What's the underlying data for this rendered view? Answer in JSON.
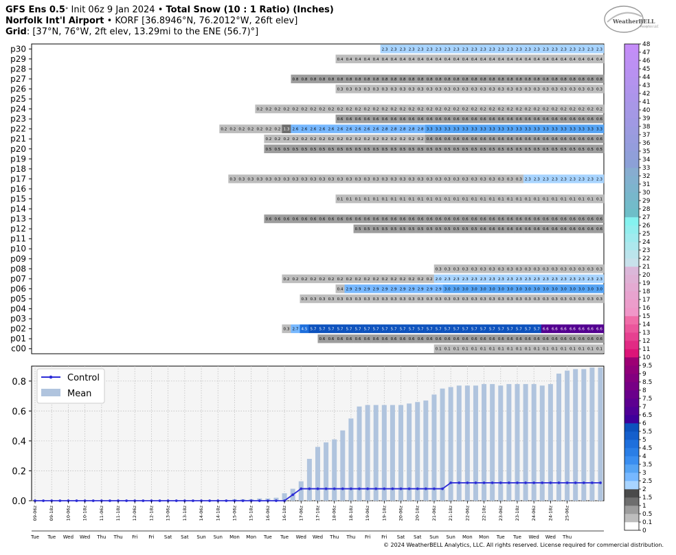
{
  "header": {
    "line1_a": "GFS Ens 0.5",
    "line1_deg": "°",
    "line1_b": " Init 06z 9 Jan 2024 • ",
    "line1_c": "Total Snow (10 : 1 Ratio) (Inches)",
    "line2_a": "Norfolk Int'l Airport",
    "line2_b": " • KORF [36.8946°N, 76.2012°W, 26ft elev]",
    "line3_a": "Grid",
    "line3_b": ": [37°N, 76°W, 2ft elev, 13.29mi to the ENE (56.7)°]"
  },
  "logo": {
    "text": "WeatherBELL",
    "sub": "Analytics LLC"
  },
  "copyright": "© 2024 WeatherBELL Analytics, LLC. All rights reserved. License required for commercial distribution.",
  "colors": {
    "control": "#2b2bd6",
    "mean": "#b0c4de",
    "grid": "#c8c8c8"
  },
  "chart_data": [
    {
      "type": "heatmap",
      "rows": [
        "p30",
        "p29",
        "p28",
        "p27",
        "p26",
        "p25",
        "p24",
        "p23",
        "p22",
        "p21",
        "p20",
        "p19",
        "p18",
        "p17",
        "p16",
        "p15",
        "p14",
        "p13",
        "p12",
        "p11",
        "p10",
        "p09",
        "p08",
        "p07",
        "p06",
        "p05",
        "p04",
        "p03",
        "p02",
        "p01",
        "c00"
      ],
      "time_steps": 64,
      "segments": {
        "p30": [
          [
            39,
            64,
            2.3
          ]
        ],
        "p29": [
          [
            34,
            64,
            0.4
          ]
        ],
        "p27": [
          [
            29,
            64,
            0.8
          ]
        ],
        "p26": [
          [
            34,
            64,
            0.3
          ]
        ],
        "p24": [
          [
            25,
            64,
            0.2
          ]
        ],
        "p23": [
          [
            34,
            64,
            0.6
          ]
        ],
        "p22": [
          [
            21,
            28,
            0.2
          ],
          [
            28,
            29,
            1.3
          ],
          [
            29,
            39,
            2.6
          ],
          [
            39,
            44,
            2.8
          ],
          [
            44,
            64,
            3.3
          ]
        ],
        "p21": [
          [
            26,
            44,
            0.2
          ],
          [
            44,
            64,
            0.6
          ]
        ],
        "p20": [
          [
            26,
            64,
            0.5
          ]
        ],
        "p17": [
          [
            22,
            55,
            0.3
          ],
          [
            55,
            64,
            2.3
          ]
        ],
        "p15": [
          [
            34,
            64,
            0.1
          ]
        ],
        "p13": [
          [
            26,
            64,
            0.6
          ]
        ],
        "p12": [
          [
            36,
            50,
            0.5
          ],
          [
            50,
            64,
            0.6
          ]
        ],
        "p08": [
          [
            45,
            64,
            0.3
          ]
        ],
        "p07": [
          [
            28,
            45,
            0.2
          ],
          [
            45,
            46,
            2.0
          ],
          [
            46,
            64,
            2.3
          ]
        ],
        "p06": [
          [
            34,
            35,
            0.4
          ],
          [
            35,
            46,
            2.9
          ],
          [
            46,
            64,
            3.0
          ]
        ],
        "p05": [
          [
            30,
            64,
            0.3
          ]
        ],
        "p02": [
          [
            28,
            29,
            0.3
          ],
          [
            29,
            30,
            2.7
          ],
          [
            30,
            31,
            4.5
          ],
          [
            31,
            57,
            5.7
          ],
          [
            57,
            64,
            6.6
          ]
        ],
        "p01": [
          [
            32,
            64,
            0.6
          ]
        ],
        "c00": [
          [
            45,
            64,
            0.1
          ]
        ]
      },
      "cell_labels": {
        "p30": [
          "2.1",
          "2.3"
        ],
        "p29": [
          "0.4",
          "0.5"
        ],
        "p27": [
          "0.8",
          "0.9"
        ],
        "p26": [
          "0.3"
        ],
        "p24": [
          "0.1",
          "0.2"
        ],
        "p23": [
          "0.6",
          "0.7"
        ],
        "p22": [
          "0.2",
          "1.3",
          "2.6",
          "2.8",
          "2.9",
          "3.2",
          "3.3"
        ],
        "p21": [
          "0.2",
          "0.6"
        ],
        "p20": [
          "0.4",
          "0.5",
          "0.6"
        ],
        "p17": [
          "0.3",
          "0.4",
          "0.5",
          "2.3"
        ],
        "p15": [
          "0.1"
        ],
        "p13": [
          "0.6"
        ],
        "p12": [
          "0.4",
          "0.5",
          "0.6"
        ],
        "p08": [
          "0.3"
        ],
        "p07": [
          "0.1",
          "0.2",
          "0.4",
          "0.9",
          "2.0",
          "2.1",
          "2.2",
          "2.3"
        ],
        "p06": [
          "0.4",
          "2.8",
          "2.9",
          "3.0"
        ],
        "p05": [
          "0.3"
        ],
        "p02": [
          "0.3",
          "2.7",
          "4.5",
          "5.7",
          "6.0",
          "6.2",
          "6.6",
          "6.7"
        ],
        "p01": [
          "0.6"
        ],
        "c00": [
          "0.1"
        ]
      },
      "colorbar_ticks": [
        "0",
        "0.1",
        "0.5",
        "1",
        "1.5",
        "2",
        "2.5",
        "3",
        "3.5",
        "4",
        "4.5",
        "5",
        "5.5",
        "6",
        "6.5",
        "7",
        "7.5",
        "8",
        "8.5",
        "9",
        "9.5",
        "10",
        "11",
        "12",
        "13",
        "14",
        "15",
        "16",
        "17",
        "18",
        "19",
        "20",
        "21",
        "22",
        "23",
        "24",
        "25",
        "26",
        "27",
        "28",
        "29",
        "30",
        "31",
        "32",
        "33",
        "34",
        "35",
        "36",
        "37",
        "38",
        "39",
        "40",
        "41",
        "42",
        "43",
        "44",
        "45",
        "46",
        "47",
        "48"
      ]
    },
    {
      "type": "bar",
      "title": "",
      "ylim": [
        0,
        0.9
      ],
      "yticks": [
        "0.0",
        "0.2",
        "0.4",
        "0.6",
        "0.8"
      ],
      "legend": {
        "placement": "top-left",
        "items": [
          "Control",
          "Mean"
        ]
      },
      "grid": true,
      "x_labels": [
        "09-06z",
        "09-18z",
        "10-06z",
        "10-18z",
        "11-06z",
        "11-18z",
        "12-06z",
        "12-18z",
        "13-06z",
        "13-18z",
        "14-06z",
        "14-18z",
        "15-06z",
        "15-18z",
        "16-06z",
        "16-18z",
        "17-06z",
        "17-18z",
        "18-06z",
        "18-18z",
        "19-06z",
        "19-18z",
        "20-06z",
        "20-18z",
        "21-06z",
        "21-18z",
        "22-06z",
        "22-18z",
        "23-06z",
        "23-18z",
        "24-06z",
        "24-18z",
        "25-06z"
      ],
      "day_labels": [
        "Tue",
        "Tue",
        "Wed",
        "Wed",
        "Thu",
        "Thu",
        "Fri",
        "Fri",
        "Sat",
        "Sat",
        "Sun",
        "Sun",
        "Mon",
        "Mon",
        "Tue",
        "Tue",
        "Wed",
        "Wed",
        "Thu",
        "Thu",
        "Fri",
        "Fri",
        "Sat",
        "Sat",
        "Sun",
        "Sun",
        "Mon",
        "Mon",
        "Tue",
        "Tue",
        "Wed",
        "Wed",
        "Thu"
      ],
      "mean": [
        0,
        0,
        0,
        0,
        0,
        0,
        0,
        0,
        0,
        0,
        0,
        0,
        0,
        0,
        0,
        0,
        0,
        0,
        0,
        0,
        0,
        0,
        0,
        0.005,
        0.01,
        0.01,
        0.01,
        0.015,
        0.015,
        0.02,
        0.05,
        0.08,
        0.13,
        0.28,
        0.36,
        0.39,
        0.41,
        0.47,
        0.55,
        0.63,
        0.64,
        0.64,
        0.64,
        0.64,
        0.64,
        0.65,
        0.66,
        0.67,
        0.71,
        0.75,
        0.76,
        0.77,
        0.77,
        0.77,
        0.78,
        0.78,
        0.77,
        0.78,
        0.78,
        0.78,
        0.78,
        0.77,
        0.78,
        0.85,
        0.87,
        0.88,
        0.88,
        0.89,
        0.89
      ],
      "control": [
        0,
        0,
        0,
        0,
        0,
        0,
        0,
        0,
        0,
        0,
        0,
        0,
        0,
        0,
        0,
        0,
        0,
        0,
        0,
        0,
        0,
        0,
        0,
        0,
        0,
        0,
        0,
        0,
        0,
        0,
        0,
        0.04,
        0.08,
        0.08,
        0.08,
        0.08,
        0.08,
        0.08,
        0.08,
        0.08,
        0.08,
        0.08,
        0.08,
        0.08,
        0.08,
        0.08,
        0.08,
        0.08,
        0.08,
        0.08,
        0.12,
        0.12,
        0.12,
        0.12,
        0.12,
        0.12,
        0.12,
        0.12,
        0.12,
        0.12,
        0.12,
        0.12,
        0.12,
        0.12,
        0.12,
        0.12,
        0.12,
        0.12,
        0.12
      ]
    }
  ]
}
